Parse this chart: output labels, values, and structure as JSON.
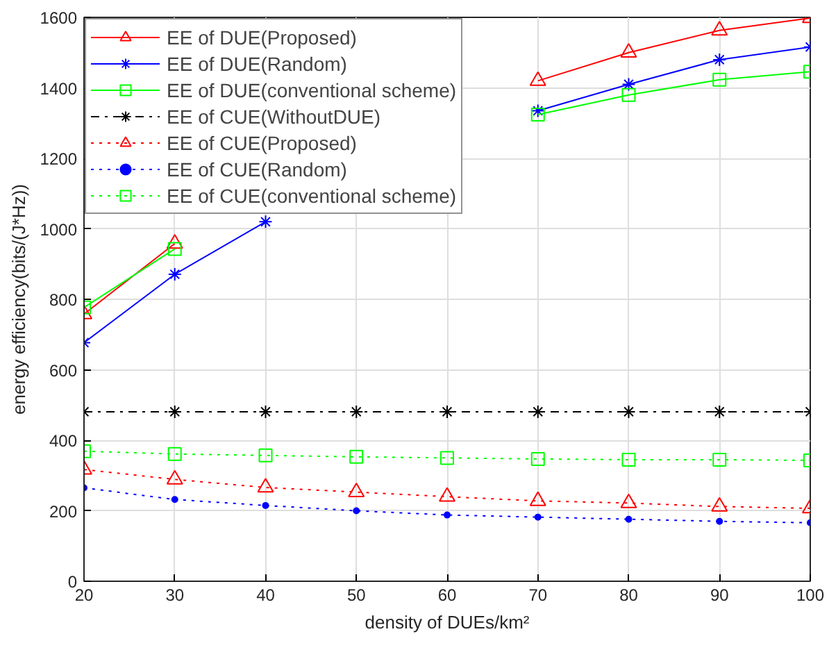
{
  "chart_data": {
    "type": "line",
    "xlabel": "density of DUEs/km²",
    "ylabel": "energy efficiency(bits/(J*Hz))",
    "x": [
      20,
      30,
      40,
      50,
      60,
      70,
      80,
      90,
      100
    ],
    "xlim": [
      20,
      100
    ],
    "xticks": [
      20,
      30,
      40,
      50,
      60,
      70,
      80,
      90,
      100
    ],
    "ylim": [
      0,
      1600
    ],
    "yticks": [
      0,
      200,
      400,
      600,
      800,
      1000,
      1200,
      1400,
      1600
    ],
    "grid": true,
    "legend": "top left",
    "series": [
      {
        "name": "EE of DUE(Proposed)",
        "color": "#ff0000",
        "marker": "triangle",
        "line_style": "solid",
        "values": [
          758,
          958,
          null,
          null,
          null,
          1420,
          1500,
          1563,
          1598
        ]
      },
      {
        "name": "EE of DUE(Random)",
        "color": "#0000ff",
        "marker": "cross",
        "line_style": "solid",
        "values": [
          677,
          871,
          1020,
          null,
          null,
          1335,
          1410,
          1480,
          1516
        ]
      },
      {
        "name": "EE of DUE(conventional scheme)",
        "color": "#00ff00",
        "marker": "square",
        "line_style": "solid",
        "values": [
          777,
          943,
          null,
          null,
          null,
          1324,
          1380,
          1423,
          1446
        ]
      },
      {
        "name": "EE of CUE(WithoutDUE)",
        "color": "#000000",
        "marker": "cross",
        "line_style": "dashdot",
        "values": [
          481,
          481,
          481,
          481,
          481,
          481,
          481,
          481,
          481
        ]
      },
      {
        "name": "EE of CUE(Proposed)",
        "color": "#ff0000",
        "marker": "triangle",
        "line_style": "dotted",
        "values": [
          317,
          289,
          266,
          253,
          240,
          228,
          222,
          212,
          207
        ]
      },
      {
        "name": "EE of CUE(Random)",
        "color": "#0000ff",
        "marker": "circle",
        "line_style": "dotted",
        "values": [
          265,
          232,
          215,
          200,
          188,
          182,
          176,
          170,
          166
        ]
      },
      {
        "name": "EE of CUE(conventional scheme)",
        "color": "#00ff00",
        "marker": "square",
        "line_style": "dotted",
        "values": [
          369,
          361,
          357,
          353,
          350,
          347,
          345,
          345,
          343
        ]
      }
    ]
  }
}
